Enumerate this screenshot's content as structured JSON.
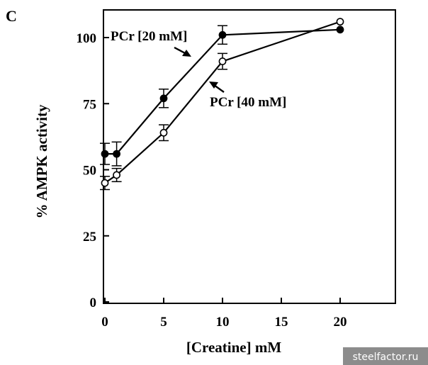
{
  "panel_label": "C",
  "watermark": "steelfactor.ru",
  "chart_data": {
    "type": "line",
    "xlabel": "[Creatine] mM",
    "ylabel": "% AMPK activity",
    "xlim": [
      0,
      25
    ],
    "ylim": [
      0,
      110
    ],
    "xticks": [
      0,
      5,
      10,
      15,
      20
    ],
    "yticks": [
      0,
      25,
      50,
      75,
      100
    ],
    "grid": false,
    "series": [
      {
        "name": "PCr [20 mM]",
        "marker": "filled-circle",
        "x": [
          0,
          1,
          5,
          10,
          20
        ],
        "y": [
          56,
          56,
          77,
          101,
          103
        ],
        "err": [
          4,
          4.5,
          3.5,
          3.5,
          0
        ]
      },
      {
        "name": "PCr [40 mM]",
        "marker": "open-circle",
        "x": [
          0,
          1,
          5,
          10,
          20
        ],
        "y": [
          45,
          48,
          64,
          91,
          106
        ],
        "err": [
          2.5,
          2.5,
          3,
          3,
          0
        ]
      }
    ]
  }
}
